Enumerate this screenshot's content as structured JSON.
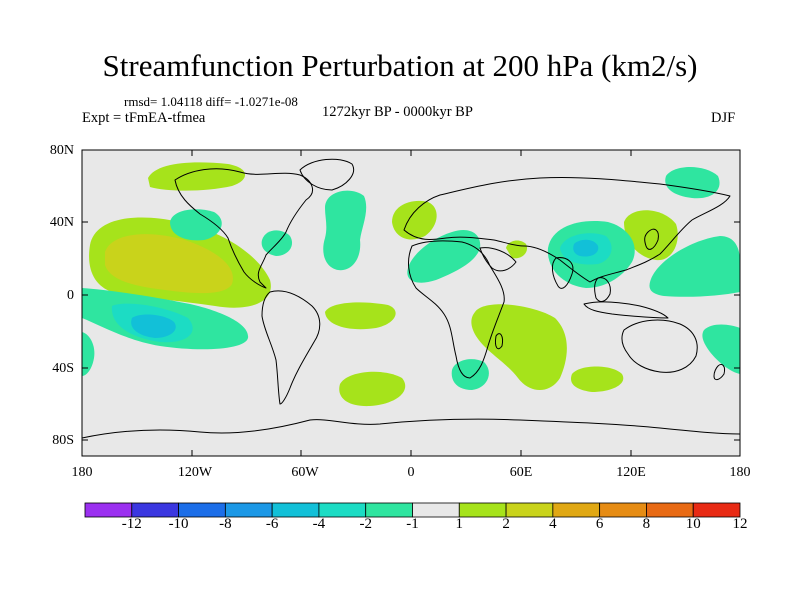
{
  "title": "Streamfunction Perturbation at 200 hPa (km2/s)",
  "stats": "rmsd= 1.04118 diff= -1.0271e-08",
  "expt": "Expt = tFmEA-tfmea",
  "period": "1272kyr BP - 0000kyr BP",
  "season": "DJF",
  "y_ticks": [
    "80N",
    "40N",
    "0",
    "40S",
    "80S"
  ],
  "x_ticks": [
    "180",
    "120W",
    "60W",
    "0",
    "60E",
    "120E",
    "180"
  ],
  "colorbar": {
    "labels": [
      "-12",
      "-10",
      "-8",
      "-6",
      "-4",
      "-2",
      "-1",
      "1",
      "2",
      "4",
      "6",
      "8",
      "10",
      "12"
    ],
    "colors": [
      "#9b30f0",
      "#3b37e0",
      "#1c6ee8",
      "#1c98e6",
      "#12c0d8",
      "#1cdcc4",
      "#2fe5a0",
      "#e8e8e8",
      "#a6e31b",
      "#c9d31b",
      "#e0a814",
      "#e68c14",
      "#e86a14",
      "#e82a14"
    ]
  },
  "fields": {
    "background": "#e8e8e8",
    "coast": "#000000",
    "pos1": "#a6e31b",
    "pos2": "#c9d31b",
    "neg1": "#2fe5a0",
    "neg2": "#1cdcc4",
    "neg3": "#12c0d8"
  }
}
